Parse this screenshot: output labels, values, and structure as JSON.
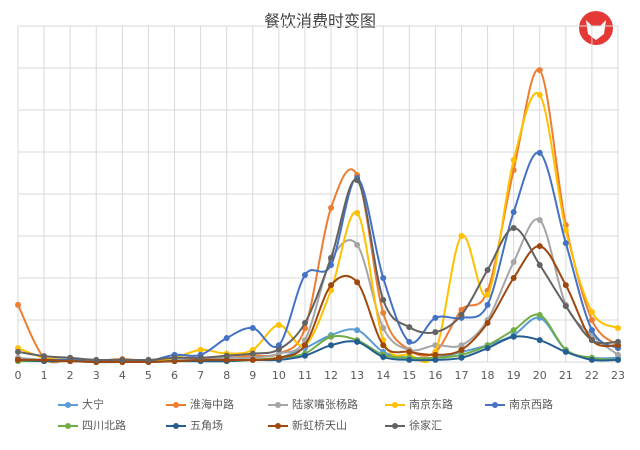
{
  "chart_data": {
    "type": "line",
    "title": "餐饮消费时变图",
    "categories": [
      "0",
      "1",
      "2",
      "3",
      "4",
      "5",
      "6",
      "7",
      "8",
      "9",
      "10",
      "11",
      "12",
      "13",
      "14",
      "15",
      "16",
      "17",
      "18",
      "19",
      "20",
      "21",
      "22",
      "23"
    ],
    "ylim": [
      0,
      8
    ],
    "yticks": [
      0,
      1,
      2,
      3,
      4,
      5,
      6,
      7,
      8
    ],
    "ytick_labels": false,
    "grid": true,
    "vertical_grid": true,
    "legend": "bottom",
    "smooth": true,
    "series": [
      {
        "name": "大宁",
        "color": "#5b9bd5",
        "values": [
          0.05,
          0.05,
          0.05,
          0.02,
          0.02,
          0.02,
          0.05,
          0.05,
          0.05,
          0.05,
          0.1,
          0.33,
          0.64,
          0.76,
          0.24,
          0.1,
          0.1,
          0.24,
          0.4,
          0.64,
          1.05,
          0.29,
          0.1,
          0.1
        ]
      },
      {
        "name": "淮海中路",
        "color": "#ed7d31",
        "values": [
          1.36,
          0.1,
          0.05,
          0.03,
          0.07,
          0.02,
          0.03,
          0.1,
          0.1,
          0.15,
          0.2,
          0.8,
          3.67,
          4.45,
          1.17,
          0.29,
          0.24,
          1.24,
          1.7,
          4.57,
          6.95,
          3.26,
          1.0,
          0.4
        ]
      },
      {
        "name": "陆家嘴张杨路",
        "color": "#a5a5a5",
        "values": [
          0.1,
          0.05,
          0.05,
          0.02,
          0.02,
          0.02,
          0.05,
          0.05,
          0.1,
          0.1,
          0.2,
          0.52,
          2.43,
          2.79,
          0.81,
          0.29,
          0.4,
          0.4,
          1.0,
          2.38,
          3.38,
          1.36,
          0.64,
          0.17
        ]
      },
      {
        "name": "南京东路",
        "color": "#ffc000",
        "values": [
          0.33,
          0.1,
          0.05,
          0.0,
          0.05,
          0.02,
          0.1,
          0.29,
          0.2,
          0.29,
          0.88,
          0.4,
          1.71,
          3.55,
          0.52,
          0.17,
          0.24,
          3.0,
          1.6,
          4.81,
          6.36,
          3.14,
          1.19,
          0.81
        ]
      },
      {
        "name": "南京西路",
        "color": "#4472c4",
        "values": [
          0.05,
          0.05,
          0.05,
          0.0,
          0.0,
          0.02,
          0.17,
          0.17,
          0.57,
          0.81,
          0.4,
          2.07,
          2.31,
          4.38,
          2.0,
          0.48,
          1.05,
          1.05,
          1.36,
          3.57,
          4.98,
          2.83,
          0.76,
          0.33
        ]
      },
      {
        "name": "四川北路",
        "color": "#70ad47",
        "values": [
          0.02,
          0.02,
          0.02,
          0.0,
          0.0,
          0.0,
          0.02,
          0.02,
          0.02,
          0.05,
          0.1,
          0.2,
          0.6,
          0.52,
          0.17,
          0.1,
          0.1,
          0.17,
          0.4,
          0.76,
          1.12,
          0.29,
          0.1,
          0.05
        ]
      },
      {
        "name": "五角场",
        "color": "#255e91",
        "values": [
          0.05,
          0.02,
          0.02,
          0.0,
          0.0,
          0.0,
          0.02,
          0.02,
          0.02,
          0.05,
          0.05,
          0.15,
          0.4,
          0.48,
          0.12,
          0.05,
          0.05,
          0.1,
          0.33,
          0.6,
          0.52,
          0.24,
          0.05,
          0.05
        ]
      },
      {
        "name": "新虹桥天山",
        "color": "#9e480e",
        "values": [
          0.05,
          0.05,
          0.02,
          0.0,
          0.0,
          0.0,
          0.02,
          0.05,
          0.05,
          0.05,
          0.1,
          0.4,
          1.83,
          1.9,
          0.4,
          0.24,
          0.17,
          0.29,
          0.93,
          2.0,
          2.76,
          1.83,
          0.52,
          0.4
        ]
      },
      {
        "name": "徐家汇",
        "color": "#636363",
        "values": [
          0.24,
          0.14,
          0.1,
          0.05,
          0.05,
          0.05,
          0.1,
          0.1,
          0.15,
          0.2,
          0.3,
          0.93,
          2.48,
          4.33,
          1.48,
          0.83,
          0.71,
          1.12,
          2.19,
          3.19,
          2.31,
          1.33,
          0.52,
          0.48
        ]
      }
    ]
  }
}
